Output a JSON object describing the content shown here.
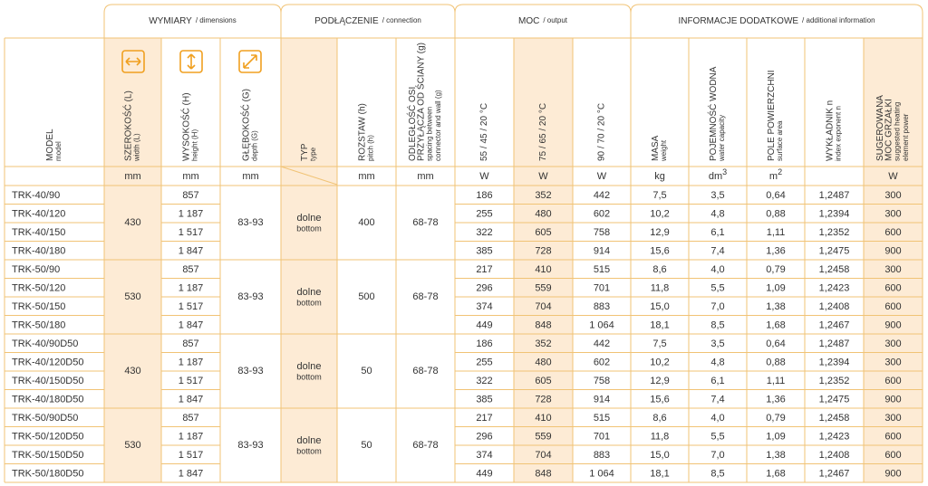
{
  "groups": [
    {
      "title": "WYMIARY",
      "subtitle": "/ dimensions"
    },
    {
      "title": "PODŁĄCZENIE",
      "subtitle": "/ connection"
    },
    {
      "title": "MOC",
      "subtitle": "/ output"
    },
    {
      "title": "INFORMACJE DODATKOWE",
      "subtitle": "/ additional information"
    }
  ],
  "columns": [
    {
      "label": [
        "MODEL"
      ],
      "sublabel": [
        "model"
      ]
    },
    {
      "label": [
        "SZEROKOŚĆ (L)"
      ],
      "sublabel": [
        "width (L)"
      ],
      "unit": "mm"
    },
    {
      "label": [
        "WYSOKOŚĆ (H)"
      ],
      "sublabel": [
        "height (H)"
      ],
      "unit": "mm"
    },
    {
      "label": [
        "GŁĘBOKOŚĆ (G)"
      ],
      "sublabel": [
        "depth (G)"
      ],
      "unit": "mm"
    },
    {
      "label": [
        "TYP"
      ],
      "sublabel": [
        "type"
      ]
    },
    {
      "label": [
        "ROZSTAW (h)"
      ],
      "sublabel": [
        "pitch (h)"
      ],
      "unit": "mm"
    },
    {
      "label": [
        "ODLEGŁOŚĆ OSI",
        "PRZYŁĄCZA OD ŚCIANY (g)"
      ],
      "sublabel": [
        "spacing between",
        "connector and wall (g)"
      ],
      "unit": "mm"
    },
    {
      "label": [
        "55 / 45 / 20 °C"
      ],
      "sublabel": [],
      "unit": "W"
    },
    {
      "label": [
        "75 / 65 / 20 °C"
      ],
      "sublabel": [],
      "unit": "W"
    },
    {
      "label": [
        "90 / 70 / 20 °C"
      ],
      "sublabel": [],
      "unit": "W"
    },
    {
      "label": [
        "MASA"
      ],
      "sublabel": [
        "weight"
      ],
      "unit": "kg"
    },
    {
      "label": [
        "POJEMNOŚĆ WODNA"
      ],
      "sublabel": [
        "water capacity"
      ],
      "unit": "dm",
      "unit_sup": "3"
    },
    {
      "label": [
        "POLE POWIERZCHNI"
      ],
      "sublabel": [
        "surface area"
      ],
      "unit": "m",
      "unit_sup": "2"
    },
    {
      "label": [
        "WYKŁADNIK n"
      ],
      "sublabel": [
        "index exponent n"
      ]
    },
    {
      "label": [
        "SUGEROWANA",
        "MOC GRZAŁKI"
      ],
      "sublabel": [
        "suggested heating",
        "element power"
      ],
      "unit": "W"
    }
  ],
  "row_groups": [
    {
      "width": "430",
      "depth": "83-93",
      "type": "dolne",
      "type_sub": "bottom",
      "pitch": "400",
      "spacing": "68-78",
      "rows": [
        [
          "TRK-40/90",
          "857",
          "186",
          "352",
          "442",
          "7,5",
          "3,5",
          "0,64",
          "1,2487",
          "300"
        ],
        [
          "TRK-40/120",
          "1 187",
          "255",
          "480",
          "602",
          "10,2",
          "4,8",
          "0,88",
          "1,2394",
          "300"
        ],
        [
          "TRK-40/150",
          "1 517",
          "322",
          "605",
          "758",
          "12,9",
          "6,1",
          "1,11",
          "1,2352",
          "600"
        ],
        [
          "TRK-40/180",
          "1 847",
          "385",
          "728",
          "914",
          "15,6",
          "7,4",
          "1,36",
          "1,2475",
          "900"
        ]
      ]
    },
    {
      "width": "530",
      "depth": "83-93",
      "type": "dolne",
      "type_sub": "bottom",
      "pitch": "500",
      "spacing": "68-78",
      "rows": [
        [
          "TRK-50/90",
          "857",
          "217",
          "410",
          "515",
          "8,6",
          "4,0",
          "0,79",
          "1,2458",
          "300"
        ],
        [
          "TRK-50/120",
          "1 187",
          "296",
          "559",
          "701",
          "11,8",
          "5,5",
          "1,09",
          "1,2423",
          "600"
        ],
        [
          "TRK-50/150",
          "1 517",
          "374",
          "704",
          "883",
          "15,0",
          "7,0",
          "1,38",
          "1,2408",
          "600"
        ],
        [
          "TRK-50/180",
          "1 847",
          "449",
          "848",
          "1 064",
          "18,1",
          "8,5",
          "1,68",
          "1,2467",
          "900"
        ]
      ]
    },
    {
      "width": "430",
      "depth": "83-93",
      "type": "dolne",
      "type_sub": "bottom",
      "pitch": "50",
      "spacing": "68-78",
      "rows": [
        [
          "TRK-40/90D50",
          "857",
          "186",
          "352",
          "442",
          "7,5",
          "3,5",
          "0,64",
          "1,2487",
          "300"
        ],
        [
          "TRK-40/120D50",
          "1 187",
          "255",
          "480",
          "602",
          "10,2",
          "4,8",
          "0,88",
          "1,2394",
          "300"
        ],
        [
          "TRK-40/150D50",
          "1 517",
          "322",
          "605",
          "758",
          "12,9",
          "6,1",
          "1,11",
          "1,2352",
          "600"
        ],
        [
          "TRK-40/180D50",
          "1 847",
          "385",
          "728",
          "914",
          "15,6",
          "7,4",
          "1,36",
          "1,2475",
          "900"
        ]
      ]
    },
    {
      "width": "530",
      "depth": "83-93",
      "type": "dolne",
      "type_sub": "bottom",
      "pitch": "50",
      "spacing": "68-78",
      "rows": [
        [
          "TRK-50/90D50",
          "857",
          "217",
          "410",
          "515",
          "8,6",
          "4,0",
          "0,79",
          "1,2458",
          "300"
        ],
        [
          "TRK-50/120D50",
          "1 187",
          "296",
          "559",
          "701",
          "11,8",
          "5,5",
          "1,09",
          "1,2423",
          "600"
        ],
        [
          "TRK-50/150D50",
          "1 517",
          "374",
          "704",
          "883",
          "15,0",
          "7,0",
          "1,38",
          "1,2408",
          "600"
        ],
        [
          "TRK-50/180D50",
          "1 847",
          "449",
          "848",
          "1 064",
          "18,1",
          "8,5",
          "1,68",
          "1,2467",
          "900"
        ]
      ]
    }
  ]
}
